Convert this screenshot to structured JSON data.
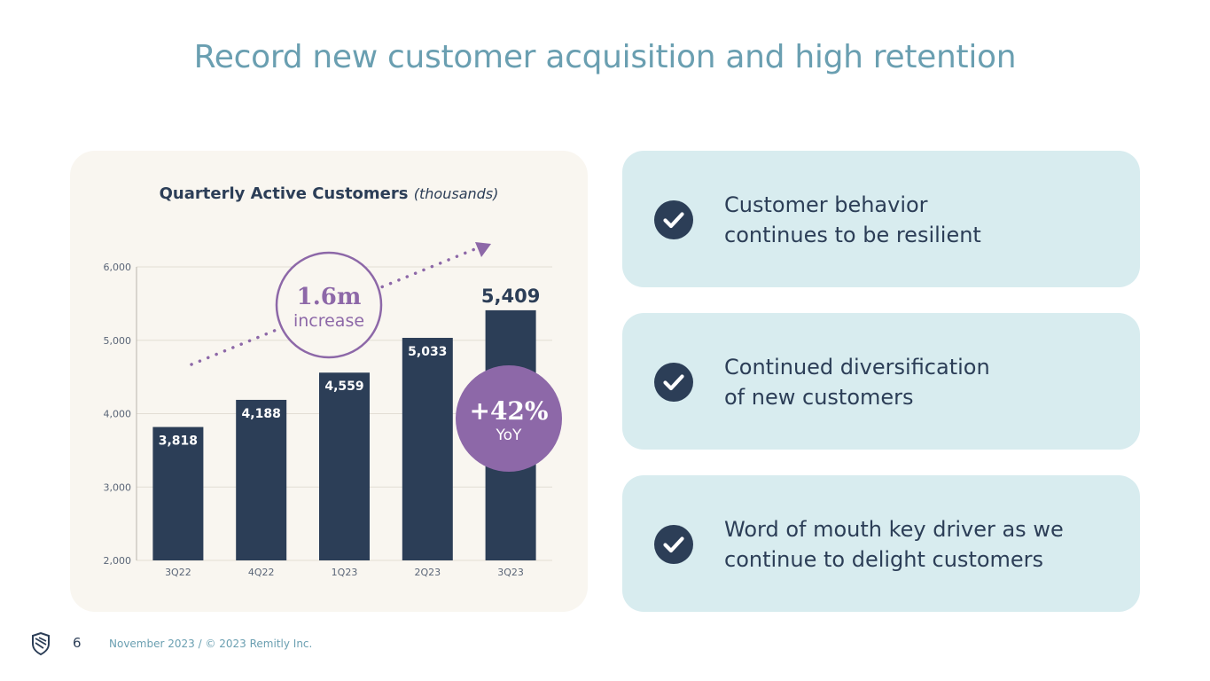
{
  "title": "Record new customer acquisition and high retention",
  "chart_data": {
    "type": "bar",
    "title": "Quarterly Active Customers",
    "title_unit": "(thousands)",
    "categories": [
      "3Q22",
      "4Q22",
      "1Q23",
      "2Q23",
      "3Q23"
    ],
    "values": [
      3818,
      4188,
      4559,
      5033,
      5409
    ],
    "value_labels": [
      "3,818",
      "4,188",
      "4,559",
      "5,033",
      "5,409"
    ],
    "ylim": [
      2000,
      6000
    ],
    "yticks": [
      2000,
      3000,
      4000,
      5000,
      6000
    ],
    "ytick_labels": [
      "2,000",
      "3,000",
      "4,000",
      "5,000",
      "6,000"
    ],
    "grid": true,
    "annotations": {
      "increase_value": "1.6m",
      "increase_label": "increase",
      "yoy_value": "+42%",
      "yoy_label": "YoY"
    },
    "colors": {
      "bar": "#2c3e57",
      "accent": "#8d68a8",
      "grid": "#e2ddd4",
      "axis_text": "#5a6577"
    }
  },
  "highlights": [
    {
      "line1": "Customer behavior",
      "line2": "continues to be resilient",
      "icon": "check-circle-icon"
    },
    {
      "line1": "Continued diversification",
      "line2": "of new customers",
      "icon": "check-circle-icon"
    },
    {
      "line1": "Word of mouth key driver as we",
      "line2": "continue to delight customers",
      "icon": "check-circle-icon"
    }
  ],
  "footer": {
    "page_number": "6",
    "text": "November 2023 / © 2023 Remitly Inc.",
    "logo_icon": "remitly-logo-icon"
  }
}
